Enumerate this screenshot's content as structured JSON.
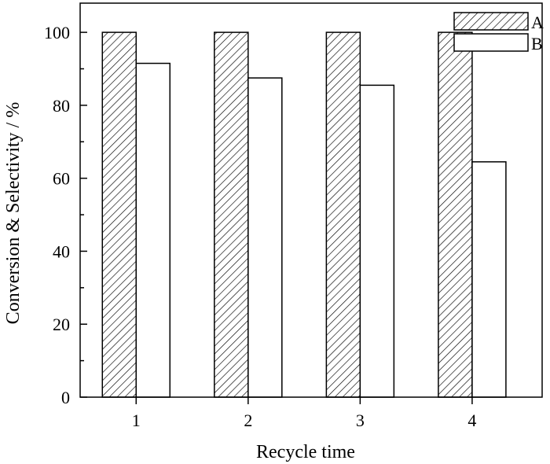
{
  "chart_data": {
    "type": "bar",
    "title": "",
    "xlabel": "Recycle time",
    "ylabel": "Conversion & Selectivity / %",
    "categories": [
      "1",
      "2",
      "3",
      "4"
    ],
    "ylim": [
      0,
      108
    ],
    "yticks": [
      0,
      20,
      40,
      60,
      80,
      100
    ],
    "grid": false,
    "legend_position": "top-right",
    "series": [
      {
        "name": "A",
        "values": [
          100,
          100,
          100,
          100
        ],
        "fill": "hatch"
      },
      {
        "name": "B",
        "values": [
          91.5,
          87.5,
          85.5,
          64.5
        ],
        "fill": "white"
      }
    ]
  }
}
